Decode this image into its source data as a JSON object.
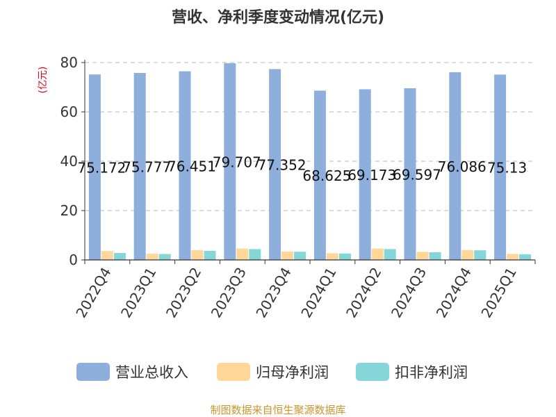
{
  "chart_data": {
    "type": "bar",
    "title": "营收、净利季度变动情况(亿元)",
    "ylabel": "(亿元)",
    "xlabel": "",
    "ylim": [
      0,
      80
    ],
    "yticks": [
      0,
      20,
      40,
      60,
      80
    ],
    "grid": true,
    "legend_position": "bottom",
    "categories": [
      "2022Q4",
      "2023Q1",
      "2023Q2",
      "2023Q3",
      "2023Q4",
      "2024Q1",
      "2024Q2",
      "2024Q3",
      "2024Q4",
      "2025Q1"
    ],
    "series": [
      {
        "name": "营业总收入",
        "color": "#8EAEDC",
        "values": [
          75.172,
          75.777,
          76.451,
          79.707,
          77.352,
          68.625,
          69.173,
          69.597,
          76.086,
          75.13
        ],
        "labels": [
          "75.172",
          "75.777",
          "76.451",
          "79.707",
          "77.352",
          "68.625",
          "69.173",
          "69.597",
          "76.086",
          "75.13"
        ]
      },
      {
        "name": "归母净利润",
        "color": "#FFD899",
        "values": [
          3.6,
          2.5,
          4.0,
          4.6,
          3.4,
          2.7,
          4.6,
          3.3,
          4.0,
          2.4
        ]
      },
      {
        "name": "扣非净利润",
        "color": "#86D5D8",
        "values": [
          2.8,
          2.4,
          3.7,
          4.4,
          3.3,
          2.6,
          4.4,
          3.1,
          3.9,
          2.3
        ]
      }
    ],
    "source": "制图数据来自恒生聚源数据库"
  }
}
